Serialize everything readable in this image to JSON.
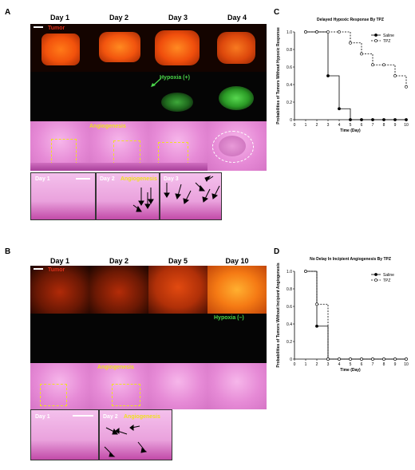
{
  "panels": {
    "A": {
      "label": "A",
      "days": [
        "Day 1",
        "Day 2",
        "Day 3",
        "Day 4"
      ],
      "tumor_label": "Tumor",
      "hypoxia_label": "Hypoxia (+)",
      "angio_label": "Angiogenesis",
      "zoom_days": [
        "Day 1",
        "Day 2",
        "Day 3"
      ],
      "zoom_angio_label": "Angiogenesis"
    },
    "B": {
      "label": "B",
      "days": [
        "Day 1",
        "Day 2",
        "Day 5",
        "Day 10"
      ],
      "tumor_label": "Tumor",
      "hypoxia_label": "Hypoxia (–)",
      "angio_label": "Angiogenesis",
      "zoom_days": [
        "Day 1",
        "Day 2"
      ],
      "zoom_angio_label": "Angiogenesis"
    },
    "C": {
      "label": "C"
    },
    "D": {
      "label": "D"
    }
  },
  "colors": {
    "tumor_red": "#d92f0f",
    "hypoxia_green": "#4ad64a",
    "angio_yellow": "#f0e020"
  },
  "chart_data": [
    {
      "type": "line",
      "step": true,
      "title": "Delayed Hypoxic Response By TPZ",
      "xlabel": "Time (Day)",
      "ylabel": "Probabilities of Tumors Without Hypoxic Response",
      "xlim": [
        0,
        10
      ],
      "ylim": [
        0,
        1.0
      ],
      "xticks": [
        "0",
        "1",
        "2",
        "3",
        "4",
        "5",
        "6",
        "7",
        "8",
        "9",
        "10"
      ],
      "yticks": [
        "0",
        "0.2",
        "0.4",
        "0.6",
        "0.8",
        "1.0"
      ],
      "legend": "top-right",
      "series": [
        {
          "name": "Saline",
          "style": "solid",
          "marker": "filled",
          "x": [
            1,
            2,
            3,
            4,
            5,
            6,
            7,
            8,
            9,
            10
          ],
          "y": [
            1.0,
            1.0,
            0.5,
            0.125,
            0,
            0,
            0,
            0,
            0,
            0
          ]
        },
        {
          "name": "TPZ",
          "style": "dashed",
          "marker": "open",
          "x": [
            1,
            2,
            3,
            4,
            5,
            6,
            7,
            8,
            9,
            10
          ],
          "y": [
            1.0,
            1.0,
            1.0,
            1.0,
            0.875,
            0.75,
            0.625,
            0.625,
            0.5,
            0.375
          ]
        }
      ]
    },
    {
      "type": "line",
      "step": true,
      "title": "No Delay In Incipient Angiogenesis By TPZ",
      "xlabel": "Time (Day)",
      "ylabel": "Probabilities of Tumors Without Incipient Angiogenesis",
      "xlim": [
        0,
        10
      ],
      "ylim": [
        0,
        1.0
      ],
      "xticks": [
        "0",
        "1",
        "2",
        "3",
        "4",
        "5",
        "6",
        "7",
        "8",
        "9",
        "10"
      ],
      "yticks": [
        "0",
        "0.2",
        "0.4",
        "0.6",
        "0.8",
        "1.0"
      ],
      "legend": "top-right",
      "series": [
        {
          "name": "Saline",
          "style": "solid",
          "marker": "filled",
          "x": [
            1,
            2,
            3,
            4,
            5,
            6,
            7,
            8,
            9,
            10
          ],
          "y": [
            1.0,
            0.375,
            0,
            0,
            0,
            0,
            0,
            0,
            0,
            0
          ]
        },
        {
          "name": "TPZ",
          "style": "dashed",
          "marker": "open",
          "x": [
            1,
            2,
            3,
            4,
            5,
            6,
            7,
            8,
            9,
            10
          ],
          "y": [
            1.0,
            0.625,
            0,
            0,
            0,
            0,
            0,
            0,
            0,
            0
          ]
        }
      ]
    }
  ]
}
